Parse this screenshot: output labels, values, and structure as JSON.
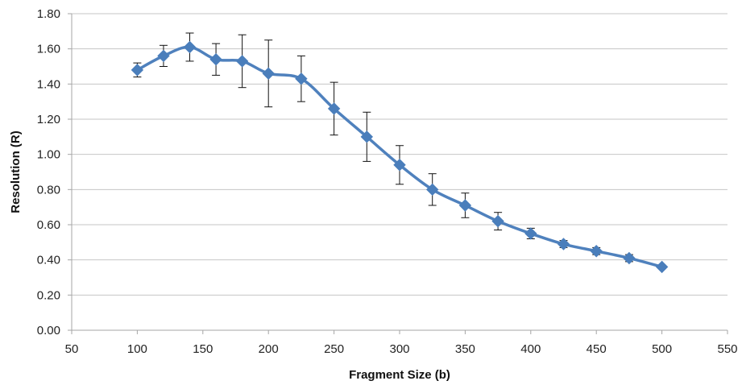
{
  "colors": {
    "series": "#4f81bd",
    "marker": "#4a7ebb"
  },
  "chart_data": {
    "type": "line",
    "smooth": true,
    "xlabel": "Fragment Size (b)",
    "ylabel": "Resolution (R)",
    "xlim": [
      50,
      550
    ],
    "ylim": [
      0,
      1.8
    ],
    "xticks": [
      50,
      100,
      150,
      200,
      250,
      300,
      350,
      400,
      450,
      500,
      550
    ],
    "yticks": [
      0,
      0.2,
      0.4,
      0.6,
      0.8,
      1.0,
      1.2,
      1.4,
      1.6,
      1.8
    ],
    "xtick_labels": [
      "50",
      "100",
      "150",
      "200",
      "250",
      "300",
      "350",
      "400",
      "450",
      "500",
      "550"
    ],
    "ytick_labels": [
      "0.00",
      "0.20",
      "0.40",
      "0.60",
      "0.80",
      "1.00",
      "1.20",
      "1.40",
      "1.60",
      "1.80"
    ],
    "grid": {
      "horizontal": true,
      "vertical": false
    },
    "legend": "none",
    "marker": "diamond",
    "series": [
      {
        "x": [
          100,
          120,
          140,
          160,
          180,
          200,
          225,
          250,
          275,
          300,
          325,
          350,
          375,
          400,
          425,
          450,
          475,
          500
        ],
        "y": [
          1.48,
          1.56,
          1.61,
          1.54,
          1.53,
          1.46,
          1.43,
          1.26,
          1.1,
          0.94,
          0.8,
          0.71,
          0.62,
          0.55,
          0.49,
          0.45,
          0.41,
          0.36
        ],
        "error": [
          0.04,
          0.06,
          0.08,
          0.09,
          0.15,
          0.19,
          0.13,
          0.15,
          0.14,
          0.11,
          0.09,
          0.07,
          0.05,
          0.03,
          0.02,
          0.02,
          0.02,
          0.01
        ]
      }
    ]
  }
}
